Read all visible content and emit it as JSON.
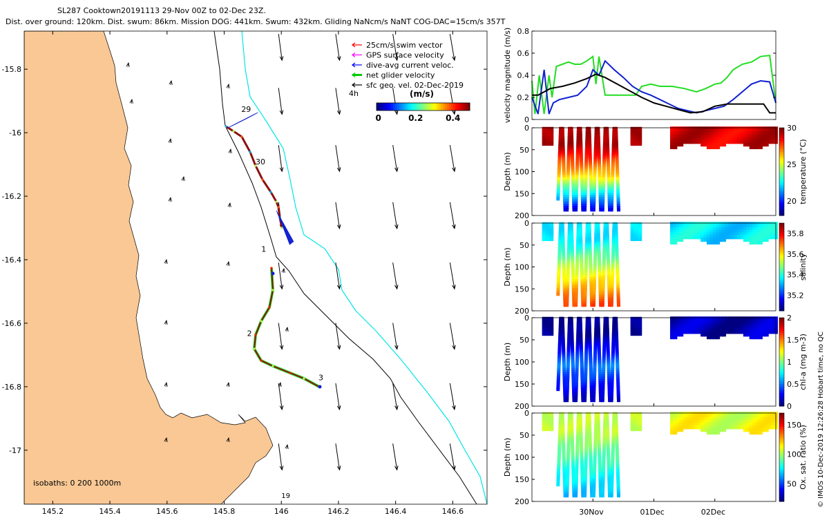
{
  "header": {
    "line1": "SL287 Cooktown20191113 29-Nov 00Z to 02-Dec 23Z.",
    "line2": "Dist. over ground: 120km. Dist. swum: 86km. Mission DOG: 441km. Swum: 432km. Gliding NaNcm/s NaNT COG-DAC=15cm/s 357T"
  },
  "copyright": "© IMOS 10-Dec-2019 12:26:28 Hobart time, no QC",
  "colors": {
    "land": "#f9c895",
    "isobath200": "#000000",
    "isobath1000": "#00e5e5",
    "green": "#22dd22",
    "blue": "#1020d0",
    "black": "#000000"
  },
  "chart_data": [
    {
      "type": "map",
      "x_ticks": [
        "145.2",
        "145.4",
        "145.6",
        "145.8",
        "146",
        "146.2",
        "146.4",
        "146.6"
      ],
      "y_ticks": [
        "-15.8",
        "-16",
        "-16.2",
        "-16.4",
        "-16.6",
        "-16.8",
        "-17"
      ],
      "xlim": [
        145.1,
        146.72
      ],
      "ylim": [
        -17.17,
        -15.68
      ],
      "legend": [
        {
          "label": "25cm/s swim vector",
          "color": "#ff0000"
        },
        {
          "label": "GPS surface velocity",
          "color": "#ff00ff"
        },
        {
          "label": "dive-avg current veloc.",
          "color": "#0000ff"
        },
        {
          "label": "net glider velocity",
          "color": "#00cc00"
        },
        {
          "label": "sfc geo. vel. 02-Dec-2019",
          "color": "#000000"
        }
      ],
      "duration_label": "4h",
      "colorbar": {
        "unit": "(m/s)",
        "ticks": [
          "0",
          "0.2",
          "0.4"
        ]
      },
      "isobath_label": "isobaths: 0   200  1000m",
      "track_labels": [
        {
          "text": "29",
          "lon": 145.86,
          "lat": -15.935
        },
        {
          "text": "30",
          "lon": 145.91,
          "lat": -16.1
        },
        {
          "text": "1",
          "lon": 145.93,
          "lat": -16.375
        },
        {
          "text": "2",
          "lon": 145.88,
          "lat": -16.64
        },
        {
          "text": "3",
          "lon": 146.13,
          "lat": -16.78
        }
      ],
      "extra_labels": [
        {
          "text": "19",
          "lon": 146.0,
          "lat": -17.15
        }
      ],
      "vector_field": {
        "lons": [
          146.0,
          146.2,
          146.4,
          146.6
        ],
        "lats": [
          -15.75,
          -15.92,
          -16.1,
          -16.28,
          -16.47,
          -16.66,
          -16.85,
          -17.04
        ],
        "u": 0.04,
        "v": -0.35
      }
    },
    {
      "type": "line",
      "ylabel": "velocity magnitude (m/s)",
      "ylim": [
        0,
        0.8
      ],
      "y_ticks": [
        "0",
        "0.2",
        "0.4",
        "0.6",
        "0.8"
      ],
      "xlim": [
        0,
        4
      ],
      "series": [
        {
          "name": "green",
          "color": "#22dd22",
          "x": [
            0,
            0.05,
            0.12,
            0.2,
            0.28,
            0.33,
            0.4,
            0.5,
            0.6,
            0.7,
            0.8,
            0.9,
            1.0,
            1.05,
            1.1,
            1.2,
            1.3,
            1.4,
            1.5,
            1.6,
            1.7,
            1.8,
            1.95,
            2.1,
            2.3,
            2.5,
            2.7,
            2.85,
            3.0,
            3.1,
            3.2,
            3.3,
            3.45,
            3.6,
            3.75,
            3.9,
            4.0
          ],
          "y": [
            0.35,
            0.05,
            0.4,
            0.05,
            0.4,
            0.2,
            0.48,
            0.5,
            0.52,
            0.5,
            0.5,
            0.53,
            0.57,
            0.32,
            0.57,
            0.22,
            0.22,
            0.22,
            0.22,
            0.22,
            0.22,
            0.3,
            0.32,
            0.3,
            0.3,
            0.28,
            0.25,
            0.28,
            0.32,
            0.33,
            0.38,
            0.45,
            0.5,
            0.52,
            0.57,
            0.58,
            0.15
          ]
        },
        {
          "name": "blue",
          "color": "#1020d0",
          "x": [
            0,
            0.1,
            0.2,
            0.28,
            0.35,
            0.45,
            0.6,
            0.75,
            0.9,
            1.0,
            1.1,
            1.2,
            1.35,
            1.5,
            1.65,
            1.8,
            1.95,
            2.1,
            2.25,
            2.4,
            2.55,
            2.7,
            2.85,
            3.0,
            3.15,
            3.3,
            3.45,
            3.6,
            3.75,
            3.9,
            4.0
          ],
          "y": [
            0.2,
            0.05,
            0.45,
            0.05,
            0.15,
            0.18,
            0.2,
            0.22,
            0.3,
            0.45,
            0.4,
            0.53,
            0.45,
            0.38,
            0.3,
            0.25,
            0.22,
            0.18,
            0.14,
            0.1,
            0.08,
            0.06,
            0.08,
            0.1,
            0.12,
            0.18,
            0.25,
            0.32,
            0.35,
            0.34,
            0.15
          ]
        },
        {
          "name": "black",
          "color": "#000000",
          "x": [
            0,
            0.1,
            0.3,
            0.5,
            0.7,
            0.9,
            1.05,
            1.2,
            1.4,
            1.6,
            1.8,
            2.0,
            2.2,
            2.4,
            2.6,
            2.8,
            3.0,
            3.2,
            3.4,
            3.6,
            3.8,
            3.9,
            4.0
          ],
          "y": [
            0.22,
            0.22,
            0.28,
            0.3,
            0.33,
            0.37,
            0.41,
            0.38,
            0.32,
            0.26,
            0.2,
            0.15,
            0.12,
            0.09,
            0.06,
            0.07,
            0.12,
            0.14,
            0.14,
            0.14,
            0.14,
            0.06,
            0.06
          ]
        }
      ]
    },
    {
      "type": "heatmap",
      "name": "temperature",
      "ylabel": "Depth (m)",
      "cbar_label": "temperature (°C)",
      "depth_ticks": [
        "0",
        "50",
        "100",
        "150",
        "200"
      ],
      "cbar_ticks": [
        "20",
        "25",
        "30"
      ],
      "cmin": 18,
      "cmax": 30,
      "segment1": {
        "start": 0.2,
        "end": 1.65,
        "shallow": 29.5,
        "mid": 26,
        "deep": 19,
        "maxdepth": 190
      },
      "segment2": {
        "start": 2.3,
        "end": 4.0,
        "shallow": 29,
        "maxdepth": 40
      }
    },
    {
      "type": "heatmap",
      "name": "salinity",
      "ylabel": "Depth (m)",
      "cbar_label": "salinity",
      "depth_ticks": [
        "0",
        "50",
        "100",
        "150",
        "200"
      ],
      "cbar_ticks": [
        "35.2",
        "35.4",
        "35.6",
        "35.8"
      ],
      "cmin": 35.05,
      "cmax": 35.9,
      "segment1": {
        "start": 0.2,
        "end": 1.65,
        "shallow": 35.35,
        "mid": 35.55,
        "deep": 35.75,
        "maxdepth": 190
      },
      "segment2": {
        "start": 2.3,
        "end": 4.0,
        "shallow": 35.35,
        "maxdepth": 40
      }
    },
    {
      "type": "heatmap",
      "name": "chl-a",
      "ylabel": "Depth (m)",
      "cbar_label": "chl-a (mg m-3)",
      "depth_ticks": [
        "0",
        "50",
        "100",
        "150",
        "200"
      ],
      "cbar_ticks": [
        "0",
        "0.5",
        "1",
        "1.5",
        "2"
      ],
      "cmin": 0,
      "cmax": 2,
      "segment1": {
        "start": 0.2,
        "end": 1.65,
        "shallow": 0.05,
        "mid": 0.5,
        "deep": 0.1,
        "maxdepth": 190
      },
      "segment2": {
        "start": 2.3,
        "end": 4.0,
        "shallow": 0.1,
        "maxdepth": 40
      }
    },
    {
      "type": "heatmap",
      "name": "oxygen",
      "ylabel": "Depth (m)",
      "cbar_label": "Ox. sat. ratio (%)",
      "depth_ticks": [
        "0",
        "50",
        "100",
        "150",
        "200"
      ],
      "cbar_ticks": [
        "50",
        "100",
        "150"
      ],
      "cmin": 20,
      "cmax": 170,
      "segment1": {
        "start": 0.2,
        "end": 1.65,
        "shallow": 105,
        "mid": 85,
        "deep": 65,
        "maxdepth": 190
      },
      "segment2": {
        "start": 2.3,
        "end": 4.0,
        "shallow": 110,
        "maxdepth": 40
      }
    }
  ],
  "time_axis": {
    "ticks": [
      {
        "label": "30Nov",
        "x": 1.0
      },
      {
        "label": "01Dec",
        "x": 2.0
      },
      {
        "label": "02Dec",
        "x": 3.0
      }
    ]
  }
}
